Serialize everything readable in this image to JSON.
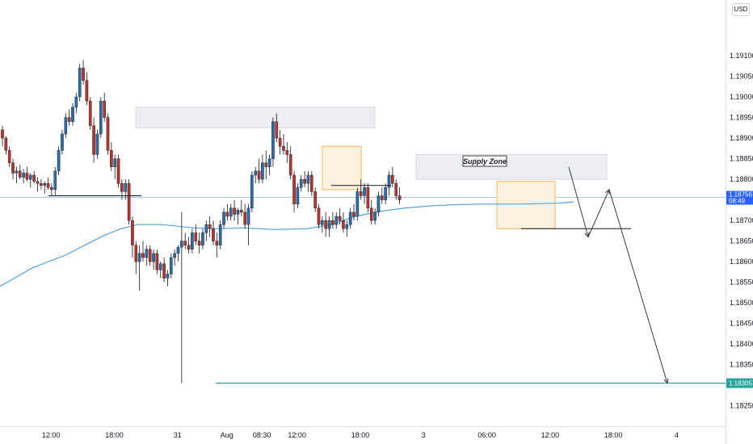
{
  "currency": "USD",
  "chart_data": {
    "type": "candlestick",
    "y_range": [
      1.1822,
      1.192
    ],
    "y_ticks": [
      "1.19100",
      "1.19050",
      "1.19000",
      "1.18950",
      "1.18900",
      "1.18850",
      "1.18800",
      "1.18750",
      "1.18700",
      "1.18650",
      "1.18600",
      "1.18550",
      "1.18500",
      "1.18450",
      "1.18400",
      "1.18350",
      "1.18300",
      "1.18250"
    ],
    "x_ticks": [
      {
        "label": "12:00",
        "x_index": 12
      },
      {
        "label": "18:00",
        "x_index": 30
      },
      {
        "label": "31",
        "x_index": 48
      },
      {
        "label": "Aug",
        "x_index": 62
      },
      {
        "label": "08:30",
        "x_index": 72
      },
      {
        "label": "12:00",
        "x_index": 82
      },
      {
        "label": "18:00",
        "x_index": 100
      },
      {
        "label": "3",
        "x_index": 118
      },
      {
        "label": "06:00",
        "x_index": 136
      },
      {
        "label": "12:00",
        "x_index": 154
      },
      {
        "label": "18:00",
        "x_index": 172
      },
      {
        "label": "4",
        "x_index": 190
      }
    ],
    "price_label": {
      "value": "1.18756",
      "countdown": "08:49",
      "color": "#2962ff"
    },
    "target_label": {
      "value": "1.18305",
      "color": "#26a69a"
    },
    "colors": {
      "up": "#2e6da4",
      "down": "#b5352f",
      "ma": "#4fa3e0",
      "zone_fill": "#eceef2",
      "box_fill": "#fdf2df",
      "box_stroke": "#f3b459",
      "line": "#131722"
    },
    "supply_zone_label": "Supply Zone",
    "candles": [
      [
        1.1892,
        1.1893,
        1.1888,
        1.189
      ],
      [
        1.189,
        1.18905,
        1.1886,
        1.1887
      ],
      [
        1.1887,
        1.1888,
        1.1883,
        1.1884
      ],
      [
        1.1884,
        1.1885,
        1.188,
        1.18815
      ],
      [
        1.18815,
        1.1883,
        1.1879,
        1.1882
      ],
      [
        1.1882,
        1.18835,
        1.188,
        1.18805
      ],
      [
        1.18805,
        1.18825,
        1.1879,
        1.18815
      ],
      [
        1.18815,
        1.1883,
        1.18795,
        1.188
      ],
      [
        1.188,
        1.18815,
        1.1878,
        1.1881
      ],
      [
        1.1881,
        1.1882,
        1.1879,
        1.18795
      ],
      [
        1.18795,
        1.18805,
        1.1877,
        1.1879
      ],
      [
        1.1879,
        1.188,
        1.18775,
        1.18785
      ],
      [
        1.18785,
        1.18795,
        1.18765,
        1.1879
      ],
      [
        1.1879,
        1.18805,
        1.18775,
        1.1878
      ],
      [
        1.1878,
        1.1879,
        1.1876,
        1.18775
      ],
      [
        1.18775,
        1.1883,
        1.1876,
        1.1882
      ],
      [
        1.1882,
        1.1888,
        1.1881,
        1.1887
      ],
      [
        1.1887,
        1.1892,
        1.1886,
        1.1891
      ],
      [
        1.1891,
        1.1896,
        1.189,
        1.1895
      ],
      [
        1.1895,
        1.1897,
        1.1893,
        1.1894
      ],
      [
        1.1894,
        1.18985,
        1.1893,
        1.18975
      ],
      [
        1.18975,
        1.1901,
        1.1896,
        1.19
      ],
      [
        1.19,
        1.1908,
        1.1899,
        1.1907
      ],
      [
        1.1907,
        1.1909,
        1.1903,
        1.1904
      ],
      [
        1.1904,
        1.1906,
        1.1898,
        1.1899
      ],
      [
        1.1899,
        1.19,
        1.1892,
        1.1893
      ],
      [
        1.1893,
        1.1895,
        1.1884,
        1.1886
      ],
      [
        1.1886,
        1.1892,
        1.1885,
        1.1891
      ],
      [
        1.1891,
        1.19,
        1.189,
        1.1899
      ],
      [
        1.1899,
        1.1901,
        1.1894,
        1.1895
      ],
      [
        1.1895,
        1.1896,
        1.1886,
        1.1887
      ],
      [
        1.1887,
        1.1889,
        1.1882,
        1.1883
      ],
      [
        1.1883,
        1.1886,
        1.188,
        1.1885
      ],
      [
        1.1885,
        1.1886,
        1.1878,
        1.1879
      ],
      [
        1.1879,
        1.188,
        1.1875,
        1.1877
      ],
      [
        1.1877,
        1.188,
        1.1875,
        1.1879
      ],
      [
        1.1879,
        1.188,
        1.1869,
        1.187
      ],
      [
        1.187,
        1.1871,
        1.1861,
        1.1864
      ],
      [
        1.1864,
        1.1865,
        1.1857,
        1.186
      ],
      [
        1.186,
        1.1864,
        1.1853,
        1.1862
      ],
      [
        1.1862,
        1.1865,
        1.186,
        1.1861
      ],
      [
        1.1861,
        1.1864,
        1.1859,
        1.1863
      ],
      [
        1.1863,
        1.1864,
        1.1859,
        1.186
      ],
      [
        1.186,
        1.1863,
        1.1858,
        1.1862
      ],
      [
        1.1862,
        1.1863,
        1.1857,
        1.1858
      ],
      [
        1.1858,
        1.186,
        1.1856,
        1.18595
      ],
      [
        1.18595,
        1.1861,
        1.1855,
        1.1856
      ],
      [
        1.1856,
        1.1858,
        1.1854,
        1.1857
      ],
      [
        1.1857,
        1.1862,
        1.1856,
        1.1861
      ],
      [
        1.1861,
        1.1863,
        1.1859,
        1.1862
      ],
      [
        1.1862,
        1.1864,
        1.186,
        1.18635
      ],
      [
        1.18635,
        1.1872,
        1.18305,
        1.1865
      ],
      [
        1.1865,
        1.1867,
        1.1863,
        1.1864
      ],
      [
        1.1864,
        1.1866,
        1.1862,
        1.1863
      ],
      [
        1.1863,
        1.1868,
        1.1862,
        1.1867
      ],
      [
        1.1867,
        1.1869,
        1.1864,
        1.1865
      ],
      [
        1.1865,
        1.1867,
        1.1862,
        1.1864
      ],
      [
        1.1864,
        1.1868,
        1.1863,
        1.1867
      ],
      [
        1.1867,
        1.187,
        1.1865,
        1.1869
      ],
      [
        1.1869,
        1.1871,
        1.1866,
        1.1868
      ],
      [
        1.1868,
        1.187,
        1.1864,
        1.1865
      ],
      [
        1.1865,
        1.1867,
        1.1861,
        1.1864
      ],
      [
        1.1864,
        1.187,
        1.1863,
        1.1869
      ],
      [
        1.1869,
        1.1873,
        1.1868,
        1.1872
      ],
      [
        1.1872,
        1.1874,
        1.187,
        1.1871
      ],
      [
        1.1871,
        1.1874,
        1.187,
        1.1873
      ],
      [
        1.1873,
        1.1875,
        1.187,
        1.18715
      ],
      [
        1.18715,
        1.1873,
        1.1869,
        1.18725
      ],
      [
        1.18725,
        1.1875,
        1.1871,
        1.1872
      ],
      [
        1.1872,
        1.1874,
        1.1868,
        1.1869
      ],
      [
        1.1869,
        1.1874,
        1.1864,
        1.1873
      ],
      [
        1.1873,
        1.1882,
        1.1872,
        1.1881
      ],
      [
        1.1881,
        1.1883,
        1.1879,
        1.1882
      ],
      [
        1.1882,
        1.1885,
        1.1879,
        1.188
      ],
      [
        1.188,
        1.1886,
        1.1879,
        1.1884
      ],
      [
        1.1884,
        1.1887,
        1.188,
        1.1883
      ],
      [
        1.1883,
        1.1886,
        1.1881,
        1.1885
      ],
      [
        1.1885,
        1.1895,
        1.1883,
        1.1894
      ],
      [
        1.1894,
        1.1896,
        1.1889,
        1.189
      ],
      [
        1.189,
        1.1892,
        1.1886,
        1.1888
      ],
      [
        1.1888,
        1.1891,
        1.1886,
        1.1887
      ],
      [
        1.1887,
        1.1889,
        1.1884,
        1.1886
      ],
      [
        1.1886,
        1.1888,
        1.188,
        1.1881
      ],
      [
        1.1881,
        1.1882,
        1.1872,
        1.1874
      ],
      [
        1.1874,
        1.1879,
        1.1873,
        1.1878
      ],
      [
        1.1878,
        1.1881,
        1.1877,
        1.188
      ],
      [
        1.188,
        1.1882,
        1.1878,
        1.1879
      ],
      [
        1.1879,
        1.1882,
        1.1877,
        1.1881
      ],
      [
        1.1881,
        1.1882,
        1.1876,
        1.1877
      ],
      [
        1.1877,
        1.1878,
        1.1872,
        1.1873
      ],
      [
        1.1873,
        1.1874,
        1.1868,
        1.1869
      ],
      [
        1.1869,
        1.1871,
        1.1867,
        1.187
      ],
      [
        1.187,
        1.1872,
        1.1866,
        1.1868
      ],
      [
        1.1868,
        1.1871,
        1.1866,
        1.187
      ],
      [
        1.187,
        1.1872,
        1.1868,
        1.1869
      ],
      [
        1.1869,
        1.1872,
        1.1868,
        1.1871
      ],
      [
        1.1871,
        1.1873,
        1.1869,
        1.187
      ],
      [
        1.187,
        1.1872,
        1.1867,
        1.1868
      ],
      [
        1.1868,
        1.187,
        1.1866,
        1.1869
      ],
      [
        1.1869,
        1.1873,
        1.1868,
        1.1872
      ],
      [
        1.1872,
        1.1874,
        1.187,
        1.1871
      ],
      [
        1.1871,
        1.1878,
        1.187,
        1.1877
      ],
      [
        1.1877,
        1.188,
        1.1875,
        1.1876
      ],
      [
        1.1876,
        1.1879,
        1.1874,
        1.1878
      ],
      [
        1.1878,
        1.1879,
        1.1872,
        1.1873
      ],
      [
        1.1873,
        1.1875,
        1.1869,
        1.187
      ],
      [
        1.187,
        1.1873,
        1.1869,
        1.1872
      ],
      [
        1.1872,
        1.1877,
        1.1871,
        1.1876
      ],
      [
        1.1876,
        1.1878,
        1.1874,
        1.1875
      ],
      [
        1.1875,
        1.1879,
        1.1874,
        1.1878
      ],
      [
        1.1878,
        1.1882,
        1.1876,
        1.1881
      ],
      [
        1.1881,
        1.1883,
        1.1878,
        1.1879
      ],
      [
        1.1879,
        1.188,
        1.1875,
        1.1876
      ],
      [
        1.1876,
        1.1878,
        1.1874,
        1.1875
      ]
    ]
  }
}
